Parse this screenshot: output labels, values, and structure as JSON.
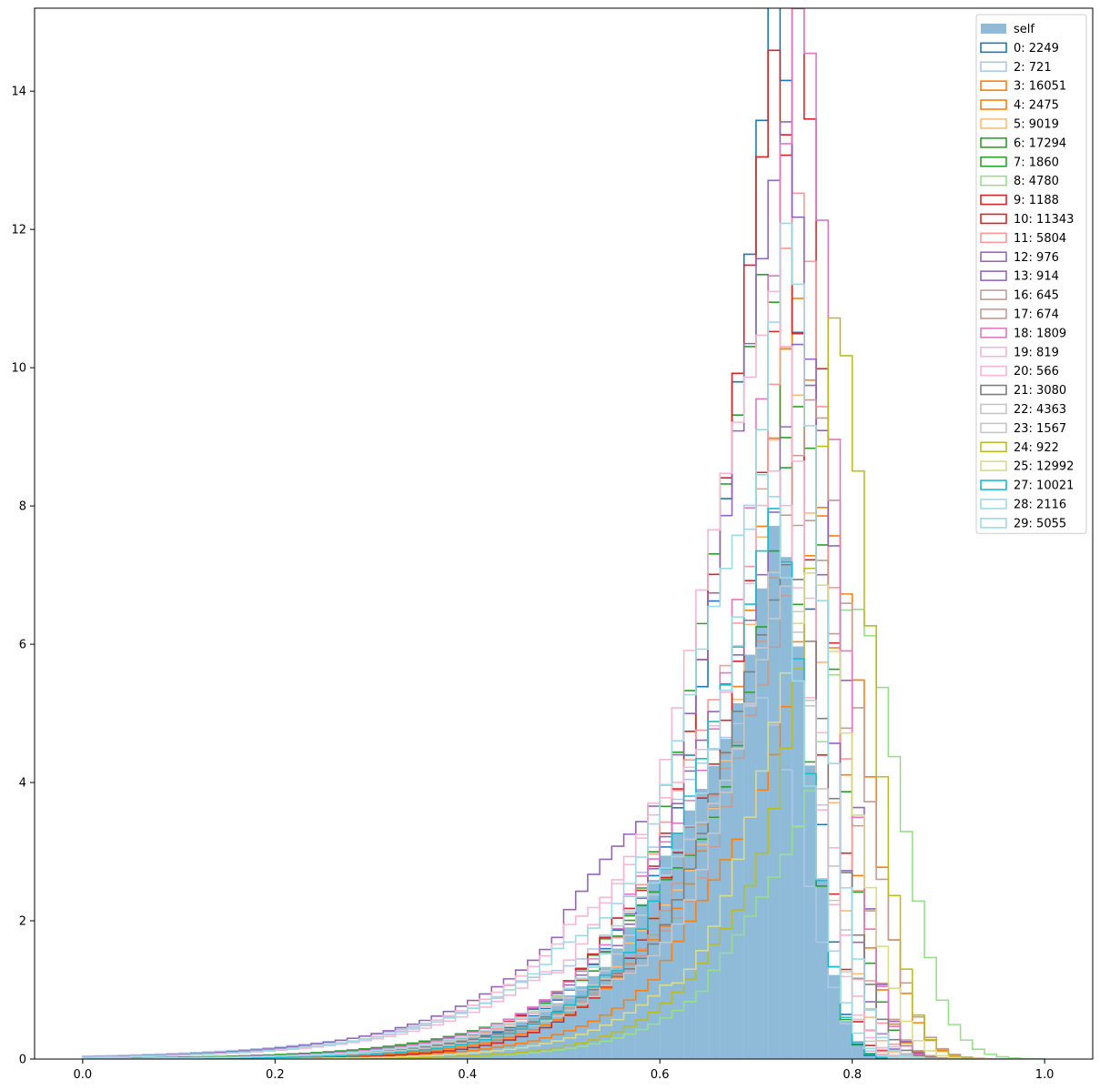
{
  "chart_data": {
    "type": "histogram",
    "title": "",
    "xlabel": "",
    "ylabel": "",
    "xlim": [
      -0.05,
      1.05
    ],
    "ylim": [
      0,
      15.2
    ],
    "grid": false,
    "legend_position": "upper right",
    "x_ticks": [
      {
        "value": 0.0,
        "label": "0.0"
      },
      {
        "value": 0.2,
        "label": "0.2"
      },
      {
        "value": 0.4,
        "label": "0.4"
      },
      {
        "value": 0.6,
        "label": "0.6"
      },
      {
        "value": 0.8,
        "label": "0.8"
      },
      {
        "value": 1.0,
        "label": "1.0"
      }
    ],
    "y_ticks": [
      {
        "value": 0,
        "label": "0"
      },
      {
        "value": 2,
        "label": "2"
      },
      {
        "value": 4,
        "label": "4"
      },
      {
        "value": 6,
        "label": "6"
      },
      {
        "value": 8,
        "label": "8"
      },
      {
        "value": 10,
        "label": "10"
      },
      {
        "value": 12,
        "label": "12"
      },
      {
        "value": 14,
        "label": "14"
      }
    ],
    "series": [
      {
        "name": "self",
        "style": "filled",
        "color": "#1f77b4",
        "peak": 0.715,
        "peak_height": 8.3,
        "left_scale": 0.095,
        "right_scale": 0.04
      },
      {
        "name": "0: 2249",
        "style": "step",
        "color": "#1f77b4",
        "peak": 0.72,
        "peak_height": 14.45,
        "left_scale": 0.08,
        "right_scale": 0.035
      },
      {
        "name": "2: 721",
        "style": "step",
        "color": "#aec7e8",
        "peak": 0.7,
        "peak_height": 6.0,
        "left_scale": 0.14,
        "right_scale": 0.05
      },
      {
        "name": "3: 16051",
        "style": "step",
        "color": "#ff7f0e",
        "peak": 0.74,
        "peak_height": 10.3,
        "left_scale": 0.085,
        "right_scale": 0.05
      },
      {
        "name": "4: 2475",
        "style": "step",
        "color": "#ff7f0e",
        "peak": 0.76,
        "peak_height": 8.1,
        "left_scale": 0.085,
        "right_scale": 0.055
      },
      {
        "name": "5: 9019",
        "style": "step",
        "color": "#ffbb78",
        "peak": 0.73,
        "peak_height": 9.2,
        "left_scale": 0.09,
        "right_scale": 0.045
      },
      {
        "name": "6: 17294",
        "style": "step",
        "color": "#2ca02c",
        "peak": 0.71,
        "peak_height": 12.3,
        "left_scale": 0.085,
        "right_scale": 0.04
      },
      {
        "name": "7: 1860",
        "style": "step",
        "color": "#2ca02c",
        "peak": 0.74,
        "peak_height": 8.5,
        "left_scale": 0.11,
        "right_scale": 0.05
      },
      {
        "name": "8: 4780",
        "style": "step",
        "color": "#98df8a",
        "peak": 0.79,
        "peak_height": 6.9,
        "left_scale": 0.075,
        "right_scale": 0.06
      },
      {
        "name": "9: 1188",
        "style": "step",
        "color": "#d62728",
        "peak": 0.74,
        "peak_height": 14.3,
        "left_scale": 0.075,
        "right_scale": 0.035
      },
      {
        "name": "10: 11343",
        "style": "step",
        "color": "#d62728",
        "peak": 0.72,
        "peak_height": 14.0,
        "left_scale": 0.085,
        "right_scale": 0.04
      },
      {
        "name": "11: 5804",
        "style": "step",
        "color": "#ff9896",
        "peak": 0.735,
        "peak_height": 12.8,
        "left_scale": 0.09,
        "right_scale": 0.045
      },
      {
        "name": "12: 976",
        "style": "step",
        "color": "#9467bd",
        "peak": 0.73,
        "peak_height": 12.6,
        "left_scale": 0.12,
        "right_scale": 0.045
      },
      {
        "name": "13: 914",
        "style": "step",
        "color": "#9467bd",
        "peak": 0.74,
        "peak_height": 11.1,
        "left_scale": 0.1,
        "right_scale": 0.05
      },
      {
        "name": "16: 645",
        "style": "step",
        "color": "#c49c94",
        "peak": 0.76,
        "peak_height": 9.4,
        "left_scale": 0.1,
        "right_scale": 0.055
      },
      {
        "name": "17: 674",
        "style": "step",
        "color": "#c49c94",
        "peak": 0.745,
        "peak_height": 8.8,
        "left_scale": 0.095,
        "right_scale": 0.05
      },
      {
        "name": "18: 1809",
        "style": "step",
        "color": "#e377c2",
        "peak": 0.745,
        "peak_height": 13.75,
        "left_scale": 0.095,
        "right_scale": 0.045
      },
      {
        "name": "19: 819",
        "style": "step",
        "color": "#f7b6d2",
        "peak": 0.72,
        "peak_height": 11.9,
        "left_scale": 0.115,
        "right_scale": 0.045
      },
      {
        "name": "20: 566",
        "style": "step",
        "color": "#f7b6d2",
        "peak": 0.71,
        "peak_height": 8.5,
        "left_scale": 0.12,
        "right_scale": 0.05
      },
      {
        "name": "21: 3080",
        "style": "step",
        "color": "#7f7f7f",
        "peak": 0.735,
        "peak_height": 7.7,
        "left_scale": 0.1,
        "right_scale": 0.05
      },
      {
        "name": "22: 4363",
        "style": "step",
        "color": "#c7c7c7",
        "peak": 0.72,
        "peak_height": 7.5,
        "left_scale": 0.1,
        "right_scale": 0.045
      },
      {
        "name": "23: 1567",
        "style": "step",
        "color": "#c7c7c7",
        "peak": 0.73,
        "peak_height": 6.6,
        "left_scale": 0.1,
        "right_scale": 0.05
      },
      {
        "name": "24: 922",
        "style": "step",
        "color": "#bcbd22",
        "peak": 0.78,
        "peak_height": 9.7,
        "left_scale": 0.07,
        "right_scale": 0.045
      },
      {
        "name": "25: 12992",
        "style": "step",
        "color": "#dbdb8d",
        "peak": 0.76,
        "peak_height": 7.3,
        "left_scale": 0.08,
        "right_scale": 0.05
      },
      {
        "name": "27: 10021",
        "style": "step",
        "color": "#17becf",
        "peak": 0.715,
        "peak_height": 9.1,
        "left_scale": 0.085,
        "right_scale": 0.04
      },
      {
        "name": "28: 2116",
        "style": "step",
        "color": "#9edae5",
        "peak": 0.73,
        "peak_height": 10.8,
        "left_scale": 0.095,
        "right_scale": 0.045
      },
      {
        "name": "29: 5055",
        "style": "step",
        "color": "#9edae5",
        "peak": 0.71,
        "peak_height": 9.2,
        "left_scale": 0.12,
        "right_scale": 0.045
      }
    ],
    "bins": {
      "start": 0.0,
      "end": 1.0,
      "width": 0.0125
    }
  }
}
